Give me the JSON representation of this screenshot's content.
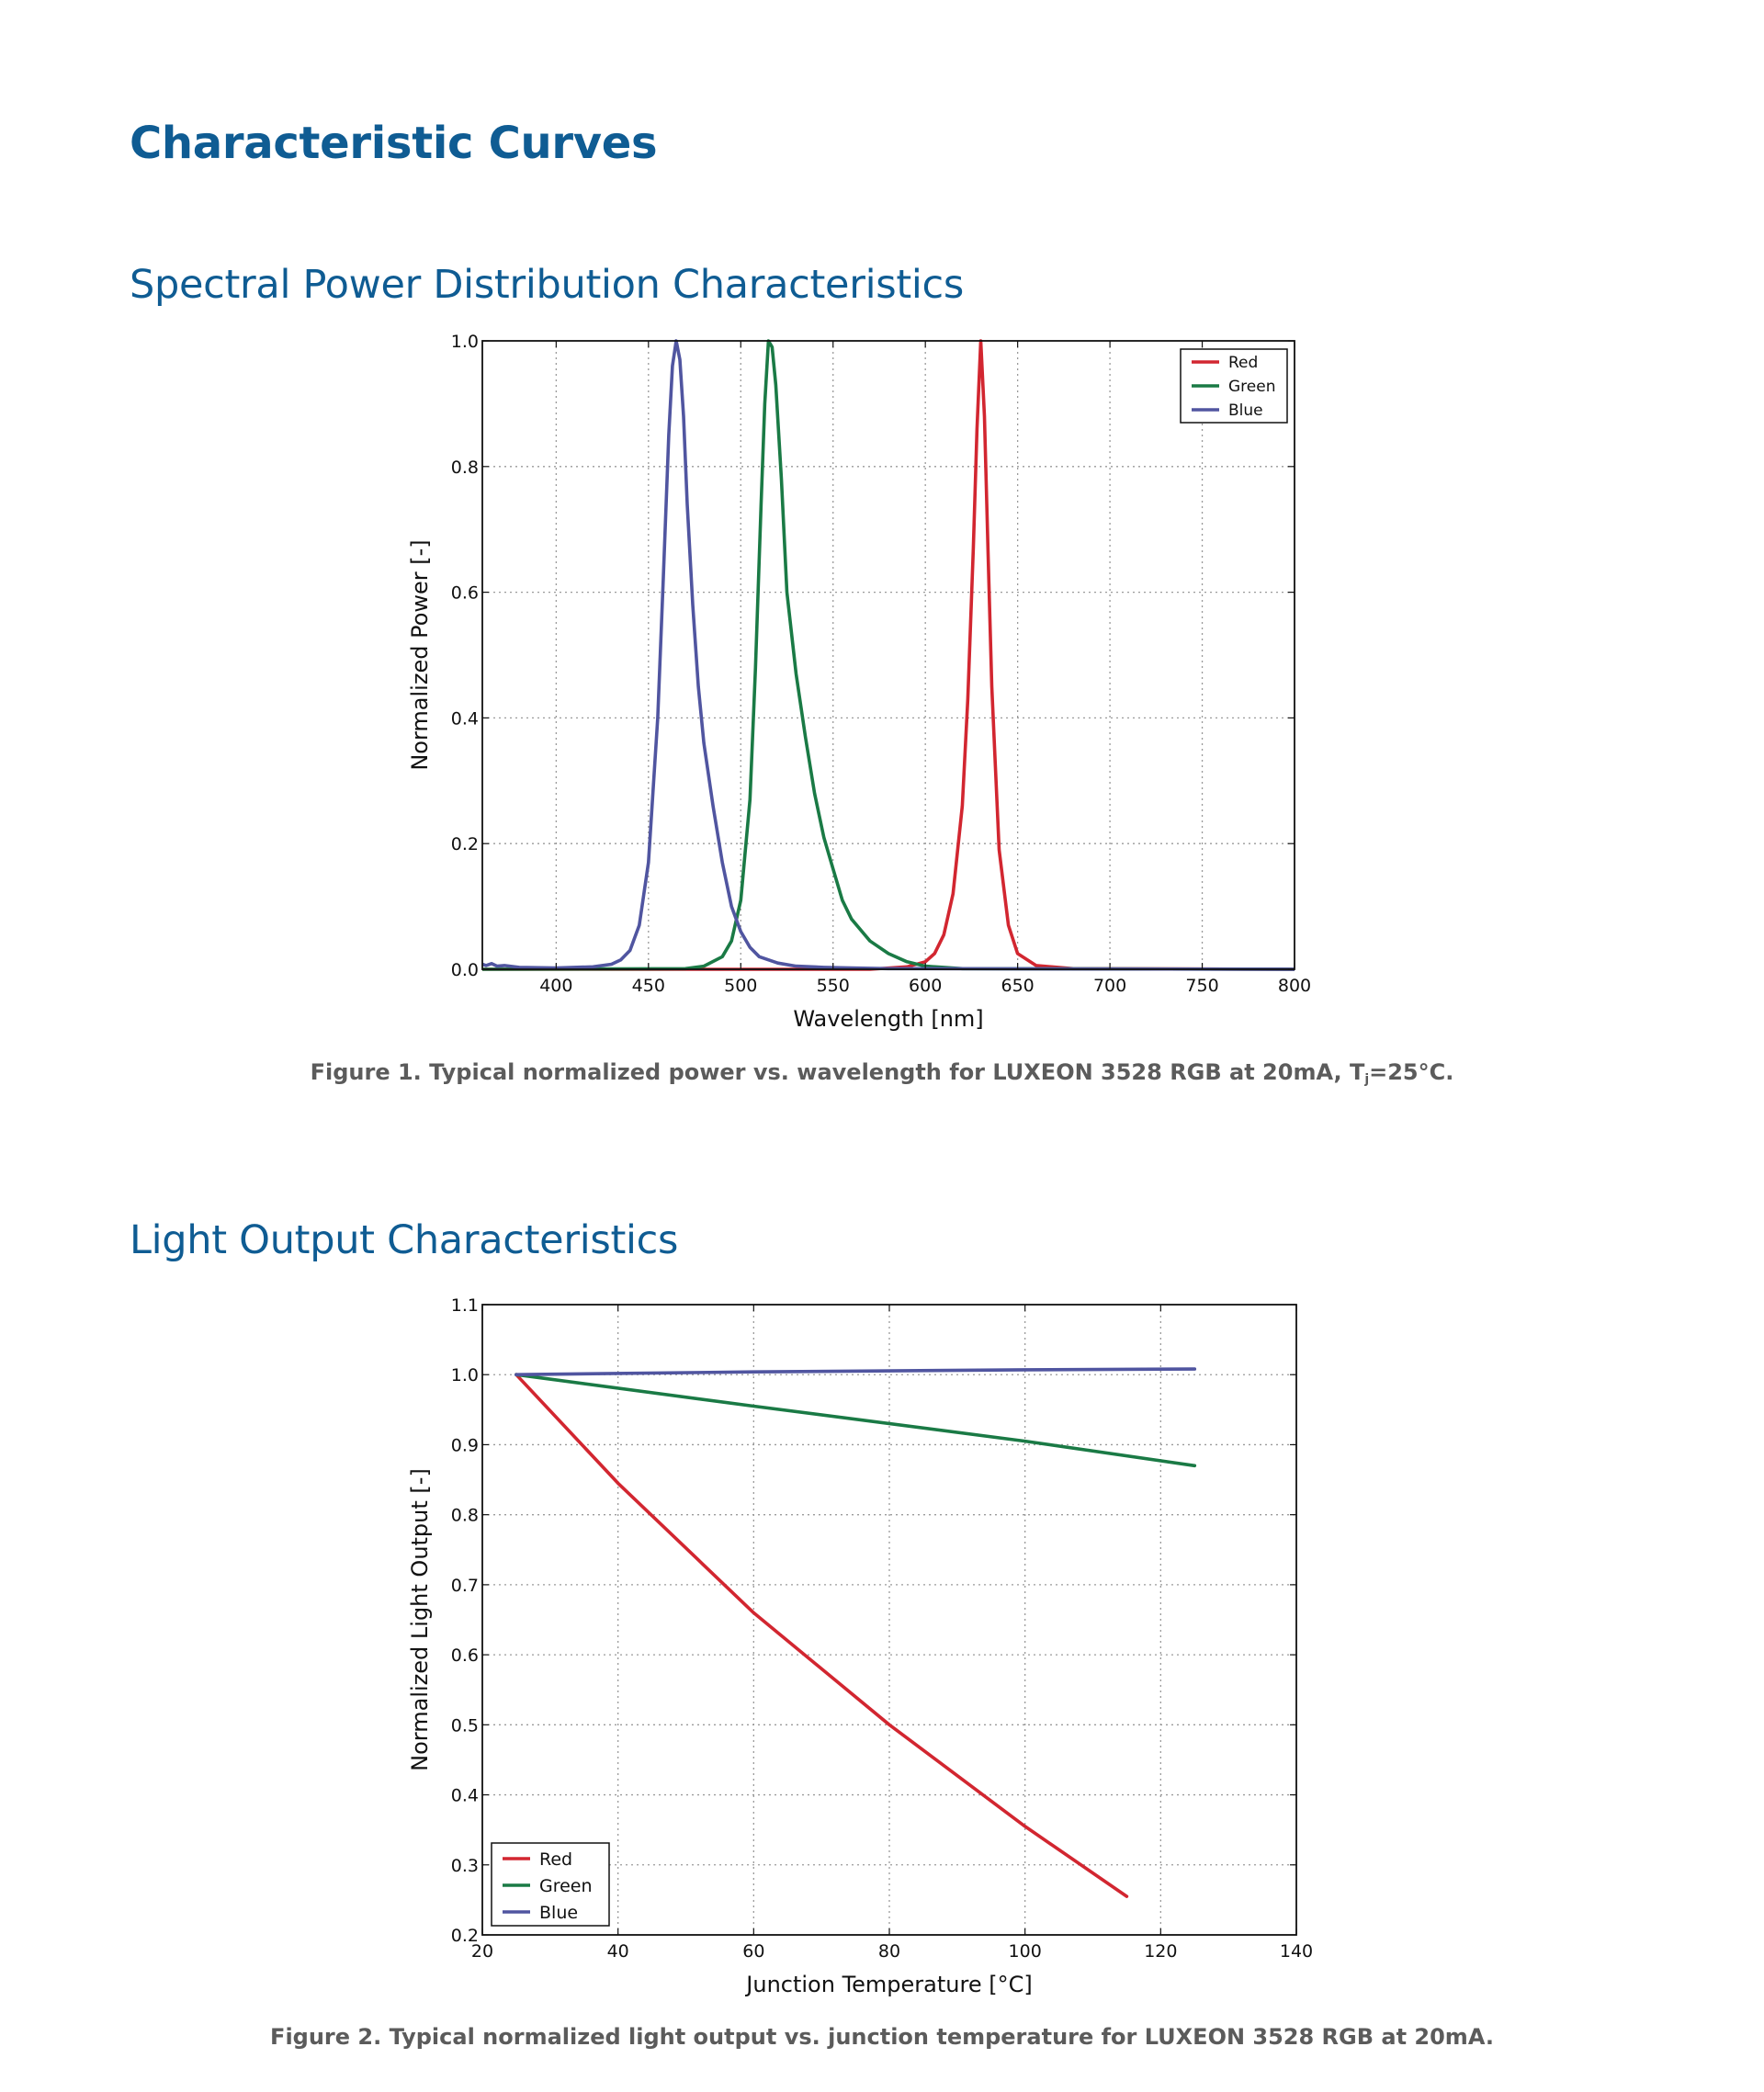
{
  "page": {
    "title": "Characteristic Curves",
    "section1_title": "Spectral Power Distribution Characteristics",
    "section2_title": "Light Output Characteristics",
    "figure1_caption_pre": "Figure 1. Typical normalized power vs. wavelength for LUXEON 3528 RGB at 20mA, T",
    "figure1_caption_sub": "j",
    "figure1_caption_post": "=25°C.",
    "figure2_caption": "Figure 2. Typical normalized light output vs. junction temperature for LUXEON 3528 RGB at 20mA."
  },
  "chart_data": [
    {
      "type": "line",
      "title": "",
      "xlabel": "Wavelength [nm]",
      "ylabel": "Normalized Power [-]",
      "xlim": [
        360,
        800
      ],
      "ylim": [
        0.0,
        1.0
      ],
      "xticks": [
        400,
        450,
        500,
        550,
        600,
        650,
        700,
        750,
        800
      ],
      "xtick_labels": [
        "400",
        "450",
        "500",
        "550",
        "600",
        "650",
        "700",
        "750",
        "800"
      ],
      "yticks": [
        0.0,
        0.2,
        0.4,
        0.6,
        0.8,
        1.0
      ],
      "ytick_labels": [
        "0.0",
        "0.2",
        "0.4",
        "0.6",
        "0.8",
        "1.0"
      ],
      "grid": true,
      "legend": "top-right",
      "series": [
        {
          "name": "Red",
          "color": "#d22630",
          "x": [
            360,
            570,
            590,
            600,
            605,
            610,
            615,
            620,
            623,
            626,
            628,
            630,
            632,
            634,
            636,
            640,
            645,
            650,
            660,
            680,
            800
          ],
          "y": [
            0,
            0,
            0.004,
            0.012,
            0.025,
            0.055,
            0.12,
            0.26,
            0.43,
            0.67,
            0.86,
            1.0,
            0.88,
            0.66,
            0.45,
            0.19,
            0.07,
            0.025,
            0.006,
            0.001,
            0
          ]
        },
        {
          "name": "Green",
          "color": "#1a7a45",
          "x": [
            360,
            470,
            480,
            490,
            495,
            500,
            505,
            508,
            511,
            513,
            515,
            517,
            519,
            522,
            525,
            530,
            535,
            540,
            545,
            550,
            555,
            560,
            570,
            580,
            590,
            600,
            620,
            800
          ],
          "y": [
            0,
            0.001,
            0.005,
            0.02,
            0.045,
            0.11,
            0.27,
            0.48,
            0.74,
            0.9,
            1.0,
            0.99,
            0.93,
            0.78,
            0.6,
            0.47,
            0.37,
            0.28,
            0.21,
            0.16,
            0.11,
            0.08,
            0.045,
            0.025,
            0.012,
            0.005,
            0.001,
            0
          ]
        },
        {
          "name": "Blue",
          "color": "#5055a0",
          "x": [
            360,
            362,
            365,
            368,
            372,
            380,
            400,
            420,
            430,
            435,
            440,
            445,
            450,
            455,
            458,
            461,
            463,
            465,
            467,
            469,
            471,
            474,
            477,
            480,
            485,
            490,
            495,
            500,
            505,
            510,
            520,
            530,
            545,
            560,
            580,
            600,
            800
          ],
          "y": [
            0.008,
            0.006,
            0.009,
            0.005,
            0.006,
            0.003,
            0.002,
            0.004,
            0.008,
            0.015,
            0.03,
            0.07,
            0.17,
            0.4,
            0.62,
            0.85,
            0.96,
            1.0,
            0.97,
            0.88,
            0.74,
            0.58,
            0.45,
            0.36,
            0.26,
            0.17,
            0.1,
            0.06,
            0.035,
            0.02,
            0.01,
            0.005,
            0.003,
            0.002,
            0.001,
            0.001,
            0
          ]
        }
      ]
    },
    {
      "type": "line",
      "title": "",
      "xlabel": "Junction Temperature [°C]",
      "ylabel": "Normalized Light Output [-]",
      "xlim": [
        20,
        140
      ],
      "ylim": [
        0.2,
        1.1
      ],
      "xticks": [
        20,
        40,
        60,
        80,
        100,
        120,
        140
      ],
      "xtick_labels": [
        "20",
        "40",
        "60",
        "80",
        "100",
        "120",
        "140"
      ],
      "yticks": [
        0.2,
        0.3,
        0.4,
        0.5,
        0.6,
        0.7,
        0.8,
        0.9,
        1.0,
        1.1
      ],
      "ytick_labels": [
        "0.2",
        "0.3",
        "0.4",
        "0.5",
        "0.6",
        "0.7",
        "0.8",
        "0.9",
        "1.0",
        "1.1"
      ],
      "grid": true,
      "legend": "bottom-left",
      "series": [
        {
          "name": "Red",
          "color": "#d22630",
          "x": [
            25,
            40,
            60,
            80,
            100,
            115
          ],
          "y": [
            1.0,
            0.845,
            0.66,
            0.5,
            0.355,
            0.255
          ]
        },
        {
          "name": "Green",
          "color": "#1a7a45",
          "x": [
            25,
            60,
            100,
            125
          ],
          "y": [
            1.0,
            0.955,
            0.905,
            0.87
          ]
        },
        {
          "name": "Blue",
          "color": "#5055a0",
          "x": [
            25,
            60,
            100,
            125
          ],
          "y": [
            1.0,
            1.004,
            1.007,
            1.008
          ]
        }
      ]
    }
  ]
}
